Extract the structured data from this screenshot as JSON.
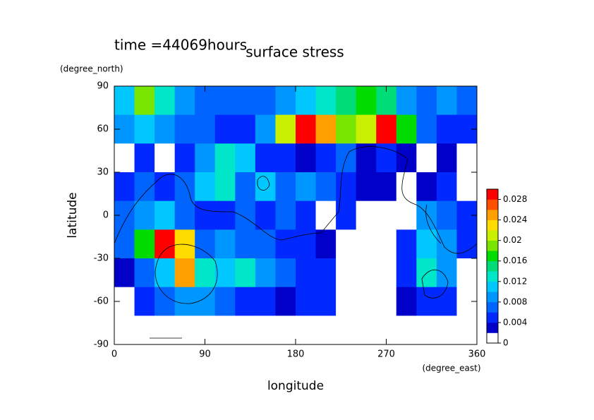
{
  "chart_data": {
    "type": "heatmap",
    "title": "surface stress",
    "subtitle": "time =44069hours",
    "xlabel": "longitude",
    "xunit": "(degree_east)",
    "ylabel": "latitude",
    "yunit": "(degree_north)",
    "xlim": [
      0,
      360
    ],
    "ylim": [
      -90,
      90
    ],
    "xticks": [
      0,
      90,
      180,
      270,
      360
    ],
    "yticks": [
      -90,
      -60,
      -30,
      0,
      30,
      60,
      90
    ],
    "x": [
      10,
      30,
      50,
      70,
      90,
      110,
      130,
      150,
      170,
      190,
      210,
      230,
      250,
      270,
      290,
      310,
      330,
      350
    ],
    "y": [
      80,
      60,
      40,
      20,
      0,
      -20,
      -40,
      -60,
      -80
    ],
    "z": [
      [
        0.01,
        0.018,
        0.012,
        0.008,
        0.006,
        0.006,
        0.006,
        0.006,
        0.008,
        0.01,
        0.012,
        0.014,
        0.016,
        0.014,
        0.008,
        0.006,
        0.008,
        0.006
      ],
      [
        0.008,
        0.01,
        0.008,
        0.006,
        0.006,
        0.005,
        0.005,
        0.008,
        0.02,
        0.03,
        0.024,
        0.018,
        0.02,
        0.028,
        0.016,
        0.006,
        0.004,
        0.004
      ],
      [
        0,
        0.004,
        0,
        0.004,
        0.008,
        0.012,
        0.01,
        0.004,
        0.004,
        0.003,
        0.004,
        0.006,
        0.003,
        0.004,
        0.002,
        0,
        0.003,
        0
      ],
      [
        0.004,
        0.006,
        0.004,
        0.006,
        0.01,
        0.012,
        0.006,
        0.01,
        0.006,
        0.008,
        0.006,
        0.004,
        0.003,
        0.003,
        0,
        0.003,
        0.004,
        0
      ],
      [
        0.006,
        0.008,
        0.01,
        0.006,
        0.004,
        0.004,
        0.006,
        0.004,
        0.006,
        0.004,
        0,
        0.004,
        0,
        0,
        0,
        0.008,
        0.006,
        0.004
      ],
      [
        0.006,
        0.016,
        0.028,
        0.022,
        0.006,
        0.008,
        0.006,
        0.006,
        0.005,
        0.004,
        0.002,
        0,
        0,
        0,
        0.004,
        0.01,
        0.008,
        0.004
      ],
      [
        0.003,
        0.006,
        0.01,
        0.024,
        0.012,
        0.01,
        0.012,
        0.008,
        0.006,
        0.004,
        0.004,
        0,
        0,
        0,
        0.004,
        0.012,
        0.008,
        0
      ],
      [
        0,
        0.004,
        0.006,
        0.008,
        0.008,
        0.006,
        0.004,
        0.004,
        0.003,
        0.004,
        0.004,
        0,
        0,
        0,
        0.002,
        0.004,
        0.004,
        0
      ],
      [
        0,
        0,
        0,
        0,
        0,
        0,
        0,
        0,
        0,
        0,
        0,
        0,
        0,
        0,
        0,
        0,
        0,
        0
      ]
    ],
    "levels": [
      0,
      0.002,
      0.004,
      0.006,
      0.008,
      0.01,
      0.012,
      0.014,
      0.016,
      0.018,
      0.02,
      0.022,
      0.024,
      0.026,
      0.028,
      0.03
    ],
    "colors": [
      "#ffffff",
      "#0000c8",
      "#0028ff",
      "#0064ff",
      "#0096ff",
      "#00c8ff",
      "#00e6c8",
      "#00dc78",
      "#00dc00",
      "#78e600",
      "#c8f000",
      "#ffdc00",
      "#ffa000",
      "#ff5000",
      "#ff0000"
    ],
    "colorbar_ticks": [
      0,
      0.004,
      0.008,
      0.012,
      0.016,
      0.02,
      0.024,
      0.028
    ]
  }
}
